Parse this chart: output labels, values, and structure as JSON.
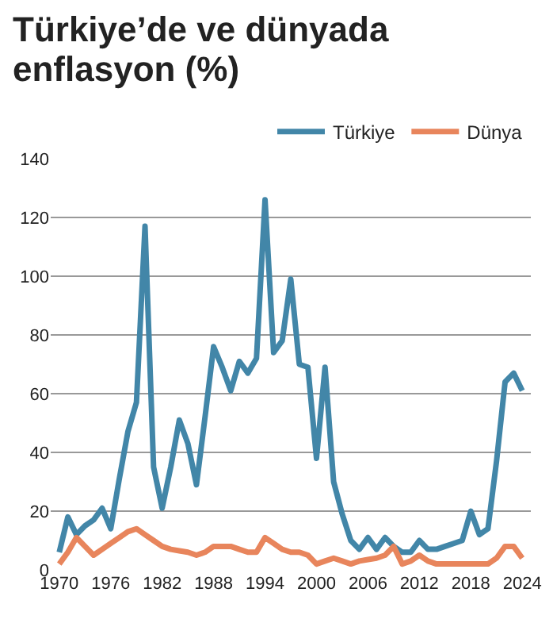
{
  "chart_data": {
    "type": "line",
    "title": "Türkiye’de ve dünyada enflasyon (%)",
    "x": [
      1970,
      1971,
      1972,
      1973,
      1974,
      1975,
      1976,
      1977,
      1978,
      1979,
      1980,
      1981,
      1982,
      1983,
      1984,
      1985,
      1986,
      1987,
      1988,
      1989,
      1990,
      1991,
      1992,
      1993,
      1994,
      1995,
      1996,
      1997,
      1998,
      1999,
      2000,
      2001,
      2002,
      2003,
      2004,
      2005,
      2006,
      2007,
      2008,
      2009,
      2010,
      2011,
      2012,
      2013,
      2014,
      2015,
      2016,
      2017,
      2018,
      2019,
      2020,
      2021,
      2022,
      2023,
      2024
    ],
    "series": [
      {
        "name": "Türkiye",
        "color": "#4286a8",
        "values": [
          6,
          18,
          12,
          15,
          17,
          21,
          14,
          31,
          47,
          57,
          117,
          35,
          21,
          35,
          51,
          43,
          29,
          52,
          76,
          69,
          61,
          71,
          67,
          72,
          126,
          74,
          78,
          99,
          70,
          69,
          38,
          69,
          30,
          19,
          10,
          7,
          11,
          7,
          11,
          8,
          6,
          6,
          10,
          7,
          7,
          8,
          9,
          10,
          20,
          12,
          14,
          37,
          64,
          67,
          61
        ]
      },
      {
        "name": "Dünya",
        "color": "#e8855c",
        "values": [
          2,
          6,
          11,
          8,
          5,
          7,
          9,
          11,
          13,
          14,
          12,
          10,
          8,
          7,
          6.5,
          6,
          5,
          6,
          8,
          8,
          8,
          7,
          6,
          6,
          11,
          9,
          7,
          6,
          6,
          5,
          2,
          3,
          4,
          3,
          2,
          3,
          3.5,
          4,
          5,
          8,
          2,
          3,
          5,
          3,
          2,
          2,
          2,
          2,
          2,
          2,
          2,
          4,
          8,
          8,
          4
        ]
      }
    ],
    "xlim": [
      1969,
      2025
    ],
    "xticks": [
      1970,
      1976,
      1982,
      1988,
      1994,
      2000,
      2006,
      2012,
      2018,
      2024
    ],
    "ylim": [
      0,
      140
    ],
    "yticks": [
      0,
      20,
      40,
      60,
      80,
      100,
      120,
      140
    ],
    "grid": "y",
    "legend": "top right",
    "marker": "none",
    "line_style": "solid"
  }
}
